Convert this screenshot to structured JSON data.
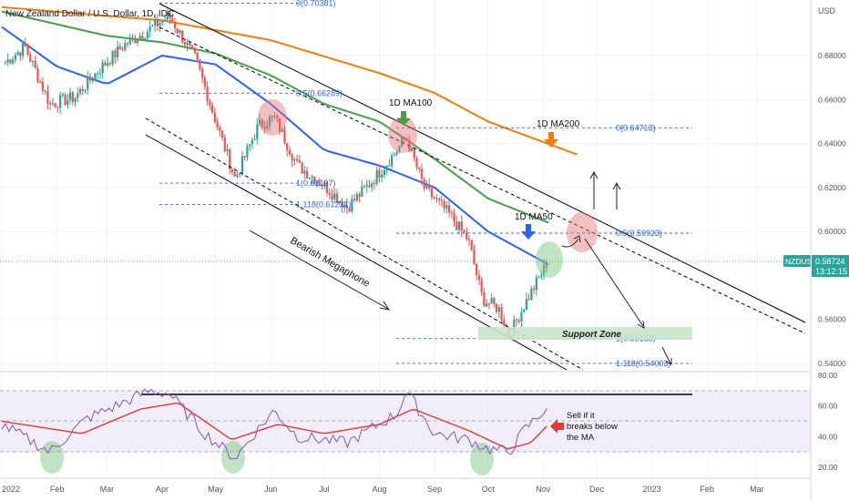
{
  "title": "New Zealand Dollar / U.S. Dollar, 1D, IDC",
  "currency": "USD",
  "symbol": "NZDUSD",
  "last_price": "0.58724",
  "countdown": "13:12:15",
  "colors": {
    "bull": "#26a69a",
    "bear": "#ef5350",
    "ma50": "#2962ff",
    "ma100": "#43a047",
    "ma200": "#f57c00",
    "fib": "#2962ff",
    "rsi": "#7e57c2",
    "rsi_ma": "#e53935",
    "channel": "#000000"
  },
  "chart_data": [
    {
      "type": "candlestick",
      "title": "New Zealand Dollar / U.S. Dollar, 1D, IDC",
      "ylim": [
        0.535,
        0.706
      ],
      "y_ticks": [
        "0.68000",
        "0.66000",
        "0.64000",
        "0.62000",
        "0.60000",
        "0.56000",
        "0.54000"
      ],
      "x_ticks": [
        "2022",
        "Feb",
        "Mar",
        "Apr",
        "May",
        "Jun",
        "Jul",
        "Aug",
        "Sep",
        "Oct",
        "Nov",
        "Dec",
        "2023",
        "Feb",
        "Mar"
      ],
      "key_closes": [
        {
          "date": "2022-01-03",
          "price": 0.677
        },
        {
          "date": "2022-01-14",
          "price": 0.684
        },
        {
          "date": "2022-01-28",
          "price": 0.658
        },
        {
          "date": "2022-02-11",
          "price": 0.661
        },
        {
          "date": "2022-02-25",
          "price": 0.674
        },
        {
          "date": "2022-03-11",
          "price": 0.685
        },
        {
          "date": "2022-03-25",
          "price": 0.692
        },
        {
          "date": "2022-04-05",
          "price": 0.698
        },
        {
          "date": "2022-04-20",
          "price": 0.678
        },
        {
          "date": "2022-05-02",
          "price": 0.648
        },
        {
          "date": "2022-05-12",
          "price": 0.624
        },
        {
          "date": "2022-05-25",
          "price": 0.648
        },
        {
          "date": "2022-06-03",
          "price": 0.652
        },
        {
          "date": "2022-06-16",
          "price": 0.63
        },
        {
          "date": "2022-07-01",
          "price": 0.621
        },
        {
          "date": "2022-07-14",
          "price": 0.611
        },
        {
          "date": "2022-07-28",
          "price": 0.623
        },
        {
          "date": "2022-08-11",
          "price": 0.637
        },
        {
          "date": "2022-08-16",
          "price": 0.643
        },
        {
          "date": "2022-08-26",
          "price": 0.62
        },
        {
          "date": "2022-09-09",
          "price": 0.608
        },
        {
          "date": "2022-09-20",
          "price": 0.596
        },
        {
          "date": "2022-09-28",
          "price": 0.569
        },
        {
          "date": "2022-10-07",
          "price": 0.565
        },
        {
          "date": "2022-10-13",
          "price": 0.553
        },
        {
          "date": "2022-10-21",
          "price": 0.566
        },
        {
          "date": "2022-11-04",
          "price": 0.587
        }
      ],
      "series": [
        {
          "name": "1D MA50",
          "points": [
            [
              "2022-01-01",
              0.693
            ],
            [
              "2022-02-01",
              0.675
            ],
            [
              "2022-03-01",
              0.667
            ],
            [
              "2022-04-01",
              0.68
            ],
            [
              "2022-05-01",
              0.676
            ],
            [
              "2022-06-01",
              0.658
            ],
            [
              "2022-07-01",
              0.637
            ],
            [
              "2022-08-01",
              0.63
            ],
            [
              "2022-09-01",
              0.62
            ],
            [
              "2022-10-01",
              0.6
            ],
            [
              "2022-11-04",
              0.585
            ]
          ]
        },
        {
          "name": "1D MA100",
          "points": [
            [
              "2022-01-01",
              0.7
            ],
            [
              "2022-03-01",
              0.689
            ],
            [
              "2022-04-01",
              0.686
            ],
            [
              "2022-05-01",
              0.681
            ],
            [
              "2022-06-01",
              0.671
            ],
            [
              "2022-07-01",
              0.658
            ],
            [
              "2022-08-01",
              0.65
            ],
            [
              "2022-09-01",
              0.633
            ],
            [
              "2022-10-01",
              0.615
            ],
            [
              "2022-11-04",
              0.604
            ]
          ]
        },
        {
          "name": "1D MA200",
          "points": [
            [
              "2022-01-01",
              0.702
            ],
            [
              "2022-04-01",
              0.696
            ],
            [
              "2022-06-01",
              0.687
            ],
            [
              "2022-08-01",
              0.672
            ],
            [
              "2022-09-01",
              0.663
            ],
            [
              "2022-10-01",
              0.65
            ],
            [
              "2022-11-20",
              0.635
            ]
          ]
        }
      ],
      "fib_levels": [
        {
          "label": "0(0.70381)",
          "value": 0.70381
        },
        {
          "label": "0.5(0.66289)",
          "value": 0.66289
        },
        {
          "label": "1(0.62197)",
          "value": 0.62197
        },
        {
          "label": "1.118(0.61231)",
          "value": 0.61231
        },
        {
          "label": "0(0.64713)",
          "value": 0.64713
        },
        {
          "label": "0.5(0.59923)",
          "value": 0.59923
        },
        {
          "label": "1(0.55133)",
          "value": 0.55133
        },
        {
          "label": "1.118(0.54003)",
          "value": 0.54003
        }
      ],
      "annotations": [
        "1D MA100",
        "1D MA200",
        "1D MA50",
        "Bearish Megaphone",
        "Support Zone"
      ]
    },
    {
      "type": "line",
      "ylim": [
        15,
        85
      ],
      "y_ticks": [
        "80.00",
        "60.00",
        "40.00",
        "20.00"
      ],
      "series": [
        {
          "name": "RSI",
          "points": [
            [
              "2022-01-01",
              48
            ],
            [
              "2022-01-28",
              30
            ],
            [
              "2022-02-18",
              52
            ],
            [
              "2022-03-10",
              62
            ],
            [
              "2022-03-25",
              70
            ],
            [
              "2022-04-05",
              68
            ],
            [
              "2022-04-25",
              42
            ],
            [
              "2022-05-12",
              26
            ],
            [
              "2022-05-25",
              45
            ],
            [
              "2022-06-03",
              57
            ],
            [
              "2022-06-16",
              40
            ],
            [
              "2022-07-14",
              36
            ],
            [
              "2022-08-11",
              55
            ],
            [
              "2022-08-16",
              70
            ],
            [
              "2022-09-01",
              42
            ],
            [
              "2022-09-20",
              38
            ],
            [
              "2022-10-01",
              32
            ],
            [
              "2022-10-13",
              30
            ],
            [
              "2022-10-21",
              44
            ],
            [
              "2022-11-04",
              60
            ]
          ]
        },
        {
          "name": "RSI MA",
          "points": [
            [
              "2022-01-01",
              50
            ],
            [
              "2022-02-15",
              42
            ],
            [
              "2022-03-20",
              58
            ],
            [
              "2022-04-10",
              62
            ],
            [
              "2022-05-10",
              38
            ],
            [
              "2022-06-05",
              48
            ],
            [
              "2022-07-01",
              42
            ],
            [
              "2022-08-01",
              48
            ],
            [
              "2022-08-20",
              58
            ],
            [
              "2022-09-20",
              44
            ],
            [
              "2022-10-12",
              32
            ],
            [
              "2022-10-25",
              36
            ],
            [
              "2022-11-04",
              48
            ]
          ]
        }
      ],
      "annotations": [
        "Sell if it breaks below the MA"
      ]
    }
  ]
}
